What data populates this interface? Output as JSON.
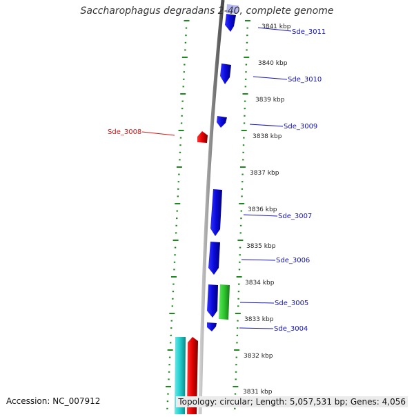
{
  "title": "Saccharophagus degradans 2-40, complete genome",
  "accession": "Accession: NC_007912",
  "topology": "Topology: circular; Length: 5,057,531 bp; Genes: 4,056",
  "colors": {
    "forward_gene": "#1414ee",
    "reverse_gene": "#e01010",
    "rna_gene": "#2ecc2e",
    "cyan_feature": "#2ad3d3",
    "tick": "#1a8a1a",
    "backbone": "#888888",
    "label_forward": "#1111bb",
    "label_reverse": "#dd1111"
  },
  "kbp_labels": [
    "3841 kbp",
    "3840 kbp",
    "3839 kbp",
    "3838 kbp",
    "3837 kbp",
    "3836 kbp",
    "3835 kbp",
    "3834 kbp",
    "3833 kbp",
    "3832 kbp",
    "3831 kbp"
  ],
  "gene_labels": [
    {
      "text": "Sde_3011",
      "strand": "forward"
    },
    {
      "text": "Sde_3010",
      "strand": "forward"
    },
    {
      "text": "Sde_3009",
      "strand": "forward"
    },
    {
      "text": "Sde_3008",
      "strand": "reverse"
    },
    {
      "text": "Sde_3007",
      "strand": "forward"
    },
    {
      "text": "Sde_3006",
      "strand": "forward"
    },
    {
      "text": "Sde_3005",
      "strand": "forward"
    },
    {
      "text": "Sde_3004",
      "strand": "forward"
    }
  ]
}
